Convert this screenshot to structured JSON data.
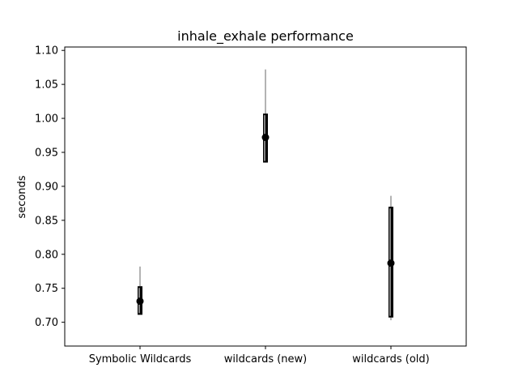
{
  "chart_data": {
    "type": "scatter",
    "title": "inhale_exhale performance",
    "xlabel": "",
    "ylabel": "seconds",
    "ylim": [
      0.665,
      1.105
    ],
    "yticks": [
      0.7,
      0.75,
      0.8,
      0.85,
      0.9,
      0.95,
      1.0,
      1.05,
      1.1
    ],
    "ytick_labels": [
      "0.70",
      "0.75",
      "0.80",
      "0.85",
      "0.90",
      "0.95",
      "1.00",
      "1.05",
      "1.10"
    ],
    "categories": [
      "Symbolic Wildcards",
      "wildcards (new)",
      "wildcards (old)"
    ],
    "points": [
      {
        "category": "Symbolic Wildcards",
        "median": 0.731,
        "q_low": 0.711,
        "q_high": 0.753,
        "min": 0.711,
        "max": 0.782
      },
      {
        "category": "wildcards (new)",
        "median": 0.972,
        "q_low": 0.935,
        "q_high": 1.007,
        "min": 0.935,
        "max": 1.072
      },
      {
        "category": "wildcards (old)",
        "median": 0.787,
        "q_low": 0.707,
        "q_high": 0.87,
        "min": 0.703,
        "max": 0.886
      }
    ],
    "grid": false,
    "colors": {
      "marker": "#000000",
      "range_line": "#808080",
      "frame": "#000000"
    }
  }
}
